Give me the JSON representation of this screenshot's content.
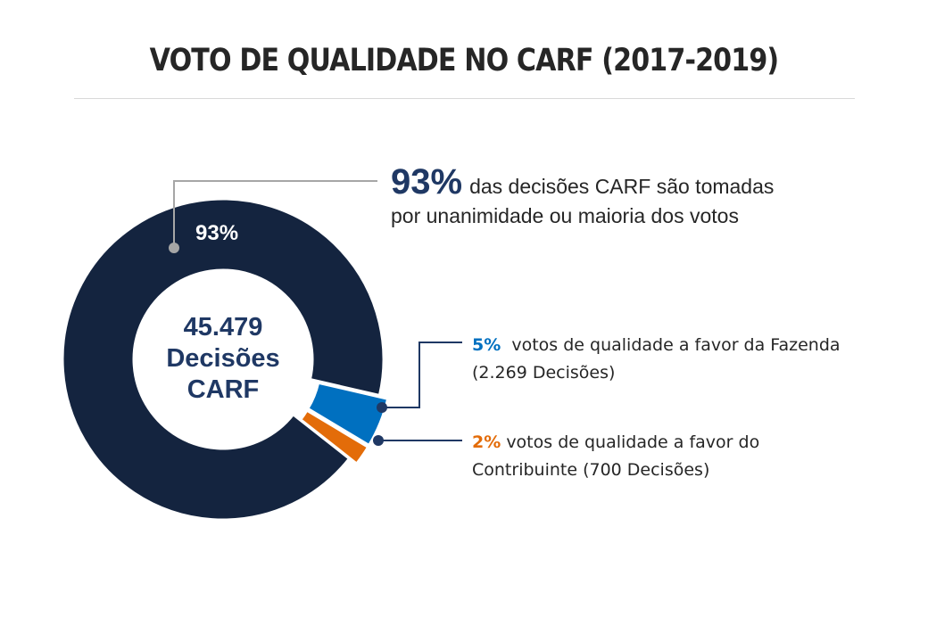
{
  "title": "VOTO DE QUALIDADE NO CARF (2017-2019)",
  "colors": {
    "unanimity": "#14243f",
    "fazenda": "#0070c0",
    "contribuinte": "#e36c09",
    "text_dark": "#262626",
    "accent_navy": "#1f3864",
    "leader_gray": "#a6a6a6"
  },
  "center": {
    "line1": "45.479",
    "line2": "Decisões",
    "line3": "CARF"
  },
  "annotations": {
    "unanimity": {
      "pct": "93%",
      "text_line1": "das decisões CARF são tomadas",
      "text_line2": "por unanimidade ou maioria dos votos"
    },
    "fazenda": {
      "pct": "5%",
      "text_line1": "votos de qualidade a favor da Fazenda",
      "text_line2": "(2.269 Decisões)"
    },
    "contribuinte": {
      "pct": "2%",
      "text_line1": "votos de qualidade a favor do",
      "text_line2": "Contribuinte (700 Decisões)"
    }
  },
  "chart_data": {
    "type": "pie",
    "donut": true,
    "title": "VOTO DE QUALIDADE NO CARF (2017-2019)",
    "total_label": "45.479 Decisões CARF",
    "slices": [
      {
        "label": "93%",
        "value": 93,
        "color": "#14243f",
        "exploded": false
      },
      {
        "label": "5%",
        "value": 5,
        "color": "#0070c0",
        "exploded": true
      },
      {
        "label": "2%",
        "value": 2,
        "color": "#e36c09",
        "exploded": true
      }
    ]
  }
}
